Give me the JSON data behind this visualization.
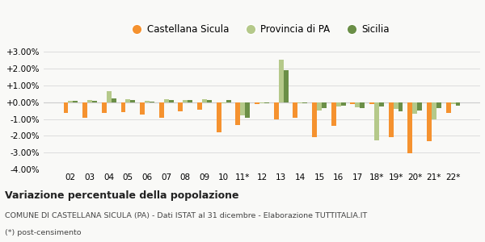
{
  "years": [
    "02",
    "03",
    "04",
    "05",
    "06",
    "07",
    "08",
    "09",
    "10",
    "11*",
    "12",
    "13",
    "14",
    "15",
    "16",
    "17",
    "18*",
    "19*",
    "20*",
    "21*",
    "22*"
  ],
  "castellana": [
    -0.65,
    -0.9,
    -0.65,
    -0.6,
    -0.75,
    -0.9,
    -0.55,
    -0.45,
    -1.8,
    -1.35,
    -0.12,
    -1.0,
    -0.9,
    -2.1,
    -1.4,
    -0.1,
    -0.1,
    -2.1,
    -3.05,
    -2.3,
    -0.65
  ],
  "provincia": [
    0.1,
    0.15,
    0.65,
    0.2,
    0.1,
    0.2,
    0.15,
    0.2,
    -0.05,
    -0.8,
    -0.05,
    2.55,
    -0.05,
    -0.5,
    -0.25,
    -0.3,
    -2.25,
    -0.4,
    -0.7,
    -1.0,
    -0.1
  ],
  "sicilia": [
    0.1,
    0.1,
    0.25,
    0.15,
    0.05,
    0.15,
    0.15,
    0.15,
    0.15,
    -0.9,
    -0.05,
    1.9,
    -0.05,
    -0.35,
    -0.2,
    -0.35,
    -0.25,
    -0.55,
    -0.5,
    -0.35,
    -0.2
  ],
  "color_castellana": "#f5922f",
  "color_provincia": "#b5c98a",
  "color_sicilia": "#6b8f47",
  "ylim": [
    -4.0,
    3.5
  ],
  "yticks": [
    -4.0,
    -3.0,
    -2.0,
    -1.0,
    0.0,
    1.0,
    2.0,
    3.0
  ],
  "title_bold": "Variazione percentuale della popolazione",
  "subtitle": "COMUNE DI CASTELLANA SICULA (PA) - Dati ISTAT al 31 dicembre - Elaborazione TUTTITALIA.IT",
  "footnote": "(*) post-censimento",
  "legend_labels": [
    "Castellana Sicula",
    "Provincia di PA",
    "Sicilia"
  ],
  "bg_color": "#f9f9f7",
  "grid_color": "#dddddd"
}
